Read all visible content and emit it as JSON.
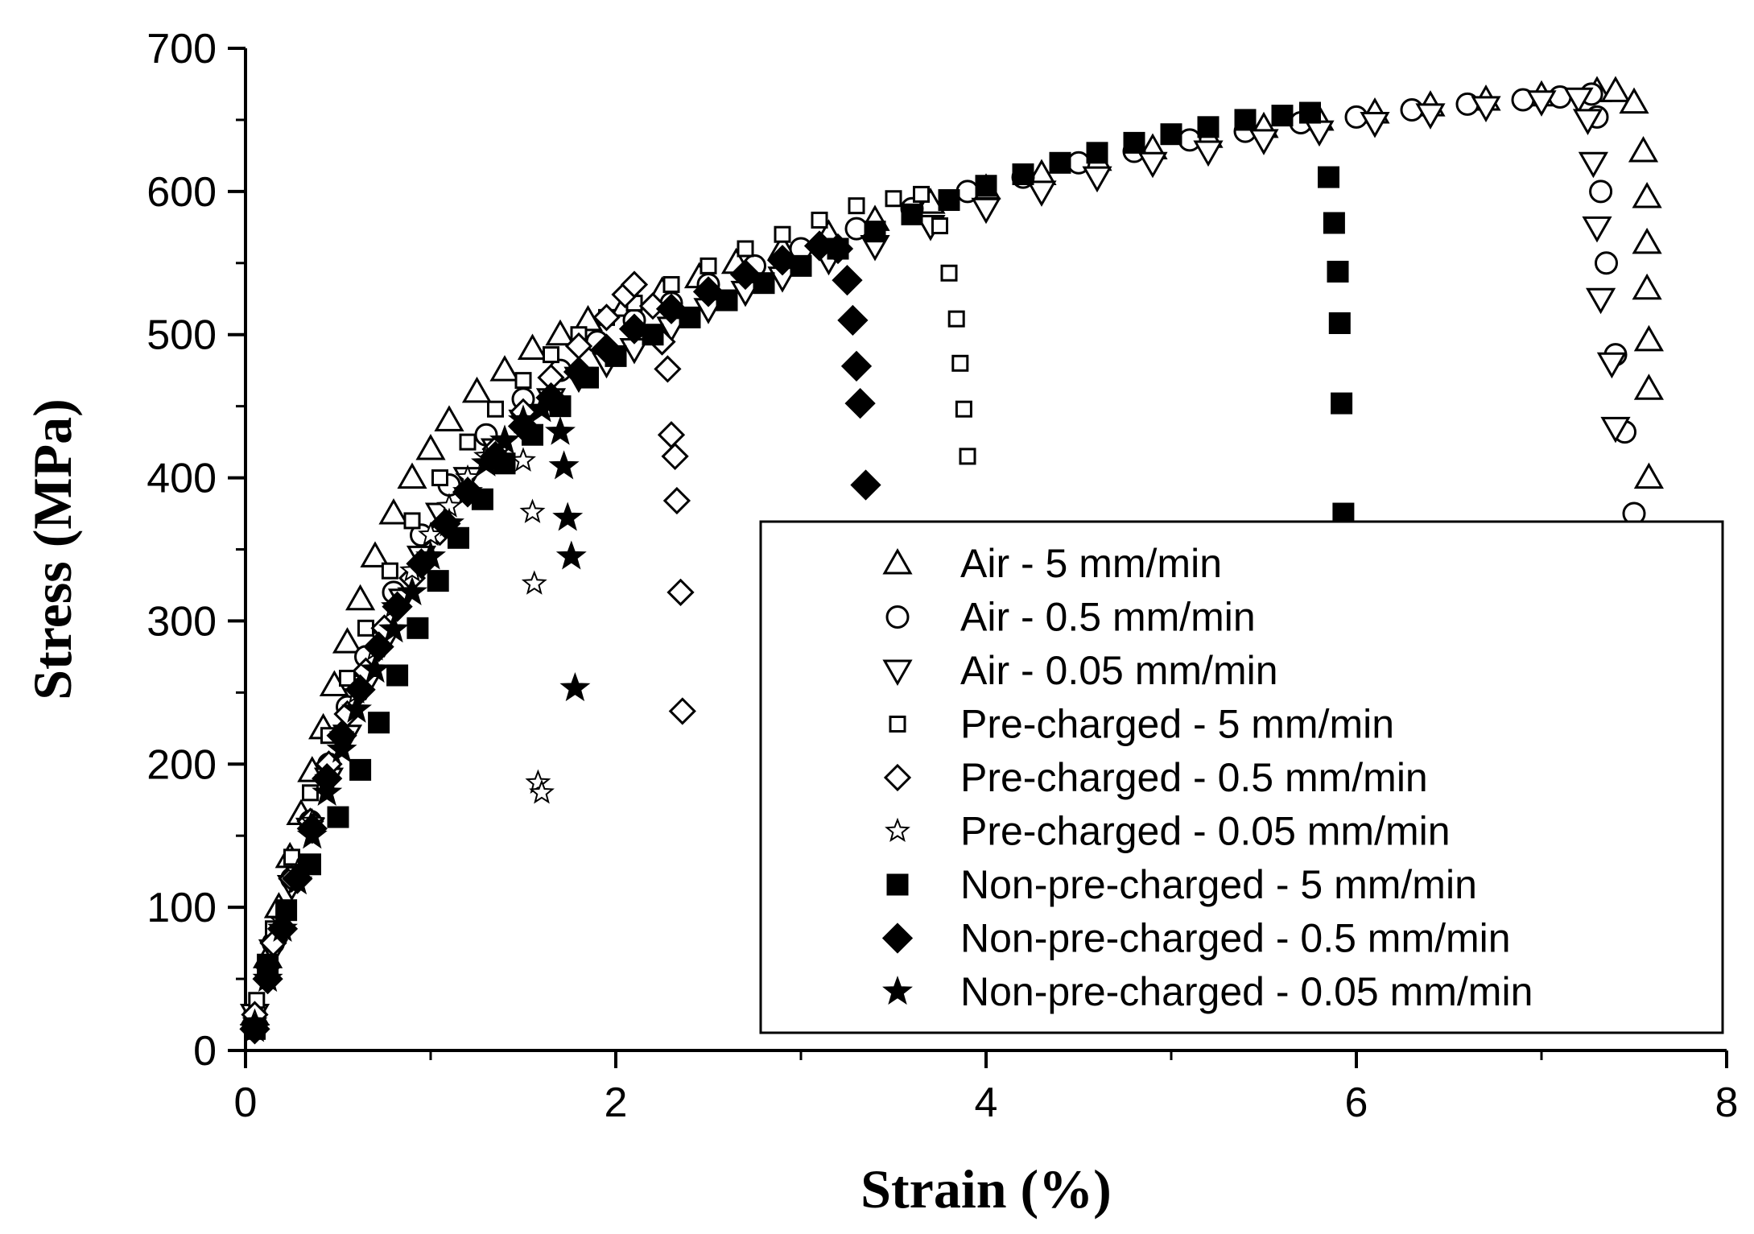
{
  "chart_data": {
    "type": "scatter",
    "title": "",
    "xlabel": "Strain (%)",
    "ylabel": "Stress (MPa)",
    "xlim": [
      0,
      8
    ],
    "ylim": [
      0,
      700
    ],
    "xticks": [
      "0",
      "2",
      "4",
      "6",
      "8"
    ],
    "yticks": [
      "0",
      "100",
      "200",
      "300",
      "400",
      "500",
      "600",
      "700"
    ],
    "legend_position": "bottom-right",
    "series": [
      {
        "name": "Air - 5 mm/min",
        "marker": "triangle-up-open",
        "x": [
          0.05,
          0.12,
          0.18,
          0.24,
          0.3,
          0.36,
          0.42,
          0.48,
          0.55,
          0.62,
          0.7,
          0.8,
          0.9,
          1.0,
          1.1,
          1.25,
          1.4,
          1.55,
          1.7,
          1.85,
          2.05,
          2.25,
          2.45,
          2.65,
          2.9,
          3.15,
          3.4,
          3.7,
          4.0,
          4.3,
          4.6,
          4.9,
          5.2,
          5.5,
          5.8,
          6.1,
          6.4,
          6.7,
          7.0,
          7.3,
          7.4,
          7.5,
          7.55,
          7.57,
          7.57,
          7.57,
          7.58,
          7.58,
          7.58
        ],
        "y": [
          25,
          65,
          100,
          135,
          165,
          195,
          225,
          255,
          285,
          315,
          345,
          375,
          400,
          420,
          440,
          460,
          475,
          490,
          500,
          510,
          520,
          530,
          540,
          550,
          560,
          570,
          580,
          592,
          602,
          612,
          622,
          630,
          638,
          645,
          650,
          655,
          660,
          664,
          667,
          670,
          670,
          662,
          628,
          596,
          564,
          532,
          496,
          462,
          400
        ]
      },
      {
        "name": "Air - 0.5 mm/min",
        "marker": "circle-open",
        "x": [
          0.05,
          0.15,
          0.25,
          0.35,
          0.45,
          0.55,
          0.65,
          0.8,
          0.95,
          1.1,
          1.3,
          1.5,
          1.7,
          1.9,
          2.1,
          2.3,
          2.5,
          2.75,
          3.0,
          3.3,
          3.6,
          3.9,
          4.2,
          4.5,
          4.8,
          5.1,
          5.4,
          5.7,
          6.0,
          6.3,
          6.6,
          6.9,
          7.1,
          7.27,
          7.3,
          7.32,
          7.35,
          7.4,
          7.45,
          7.5
        ],
        "y": [
          25,
          75,
          120,
          160,
          200,
          240,
          275,
          320,
          360,
          395,
          430,
          455,
          475,
          495,
          510,
          522,
          535,
          548,
          560,
          574,
          588,
          600,
          610,
          620,
          628,
          636,
          642,
          648,
          652,
          657,
          661,
          664,
          666,
          668,
          652,
          600,
          550,
          486,
          432,
          375
        ]
      },
      {
        "name": "Air - 0.05 mm/min",
        "marker": "triangle-down-open",
        "x": [
          0.05,
          0.15,
          0.25,
          0.35,
          0.45,
          0.55,
          0.65,
          0.75,
          0.85,
          0.95,
          1.05,
          1.2,
          1.35,
          1.5,
          1.65,
          1.8,
          1.95,
          2.1,
          2.3,
          2.5,
          2.7,
          2.9,
          3.15,
          3.4,
          3.7,
          4.0,
          4.3,
          4.6,
          4.9,
          5.2,
          5.5,
          5.8,
          6.1,
          6.4,
          6.7,
          7.0,
          7.2,
          7.25,
          7.28,
          7.3,
          7.32,
          7.38,
          7.4
        ],
        "y": [
          25,
          70,
          115,
          155,
          190,
          220,
          255,
          285,
          315,
          345,
          375,
          400,
          420,
          440,
          455,
          470,
          480,
          490,
          505,
          518,
          530,
          540,
          552,
          562,
          576,
          588,
          600,
          610,
          620,
          628,
          636,
          642,
          648,
          654,
          659,
          663,
          665,
          650,
          620,
          575,
          525,
          480,
          435
        ]
      },
      {
        "name": "Pre-charged - 5 mm/min",
        "marker": "square-open",
        "x": [
          0.06,
          0.15,
          0.25,
          0.35,
          0.45,
          0.55,
          0.65,
          0.78,
          0.9,
          1.05,
          1.2,
          1.35,
          1.5,
          1.65,
          1.8,
          1.95,
          2.1,
          2.3,
          2.5,
          2.7,
          2.9,
          3.1,
          3.3,
          3.5,
          3.65,
          3.75,
          3.8,
          3.84,
          3.86,
          3.88,
          3.9
        ],
        "y": [
          35,
          85,
          135,
          180,
          220,
          260,
          295,
          335,
          370,
          400,
          425,
          448,
          468,
          486,
          500,
          512,
          522,
          535,
          548,
          560,
          570,
          580,
          590,
          595,
          598,
          576,
          543,
          511,
          480,
          448,
          415
        ]
      },
      {
        "name": "Pre-charged - 0.5 mm/min",
        "marker": "diamond-open",
        "x": [
          0.05,
          0.15,
          0.25,
          0.35,
          0.45,
          0.55,
          0.65,
          0.75,
          0.9,
          1.05,
          1.2,
          1.35,
          1.5,
          1.65,
          1.8,
          1.95,
          2.05,
          2.1,
          2.2,
          2.25,
          2.28,
          2.3,
          2.32,
          2.33,
          2.35,
          2.36
        ],
        "y": [
          25,
          75,
          120,
          160,
          200,
          235,
          265,
          295,
          330,
          362,
          392,
          420,
          446,
          470,
          492,
          512,
          528,
          535,
          520,
          495,
          476,
          430,
          415,
          384,
          320,
          237
        ]
      },
      {
        "name": "Pre-charged - 0.05 mm/min",
        "marker": "star-open",
        "x": [
          0.05,
          0.12,
          0.2,
          0.28,
          0.36,
          0.44,
          0.52,
          0.6,
          0.7,
          0.8,
          0.9,
          1.0,
          1.1,
          1.2,
          1.3,
          1.4,
          1.5,
          1.55,
          1.56,
          1.58,
          1.6
        ],
        "y": [
          20,
          55,
          90,
          125,
          160,
          190,
          220,
          250,
          280,
          310,
          335,
          360,
          380,
          400,
          415,
          425,
          412,
          376,
          326,
          187,
          180
        ]
      },
      {
        "name": "Non-pre-charged - 5 mm/min",
        "marker": "square-filled",
        "x": [
          0.05,
          0.12,
          0.22,
          0.35,
          0.5,
          0.62,
          0.72,
          0.82,
          0.93,
          1.04,
          1.15,
          1.28,
          1.4,
          1.55,
          1.7,
          1.85,
          2.0,
          2.2,
          2.4,
          2.6,
          2.8,
          3.0,
          3.2,
          3.4,
          3.6,
          3.8,
          4.0,
          4.2,
          4.4,
          4.6,
          4.8,
          5.0,
          5.2,
          5.4,
          5.6,
          5.75,
          5.85,
          5.88,
          5.9,
          5.91,
          5.92,
          5.93
        ],
        "y": [
          15,
          60,
          98,
          130,
          163,
          196,
          229,
          262,
          295,
          328,
          358,
          385,
          410,
          430,
          450,
          470,
          485,
          500,
          512,
          524,
          536,
          548,
          560,
          572,
          584,
          594,
          604,
          612,
          620,
          627,
          634,
          640,
          645,
          650,
          653,
          655,
          610,
          578,
          544,
          508,
          452,
          375
        ]
      },
      {
        "name": "Non-pre-charged - 0.5 mm/min",
        "marker": "diamond-filled",
        "x": [
          0.05,
          0.12,
          0.2,
          0.28,
          0.36,
          0.44,
          0.52,
          0.62,
          0.72,
          0.82,
          0.95,
          1.08,
          1.2,
          1.35,
          1.5,
          1.65,
          1.8,
          1.95,
          2.1,
          2.3,
          2.5,
          2.7,
          2.9,
          3.1,
          3.2,
          3.25,
          3.28,
          3.3,
          3.32,
          3.35
        ],
        "y": [
          15,
          50,
          85,
          120,
          155,
          190,
          220,
          252,
          282,
          310,
          340,
          368,
          390,
          415,
          436,
          456,
          474,
          490,
          504,
          518,
          530,
          542,
          552,
          562,
          560,
          538,
          510,
          478,
          452,
          395
        ]
      },
      {
        "name": "Non-pre-charged - 0.05 mm/min",
        "marker": "star-filled",
        "x": [
          0.05,
          0.12,
          0.2,
          0.28,
          0.36,
          0.44,
          0.52,
          0.6,
          0.7,
          0.8,
          0.9,
          1.0,
          1.1,
          1.2,
          1.3,
          1.4,
          1.5,
          1.6,
          1.7,
          1.72,
          1.74,
          1.76,
          1.78
        ],
        "y": [
          15,
          50,
          85,
          118,
          150,
          180,
          210,
          238,
          266,
          294,
          320,
          345,
          368,
          390,
          410,
          426,
          440,
          448,
          432,
          408,
          372,
          345,
          253
        ]
      }
    ]
  }
}
